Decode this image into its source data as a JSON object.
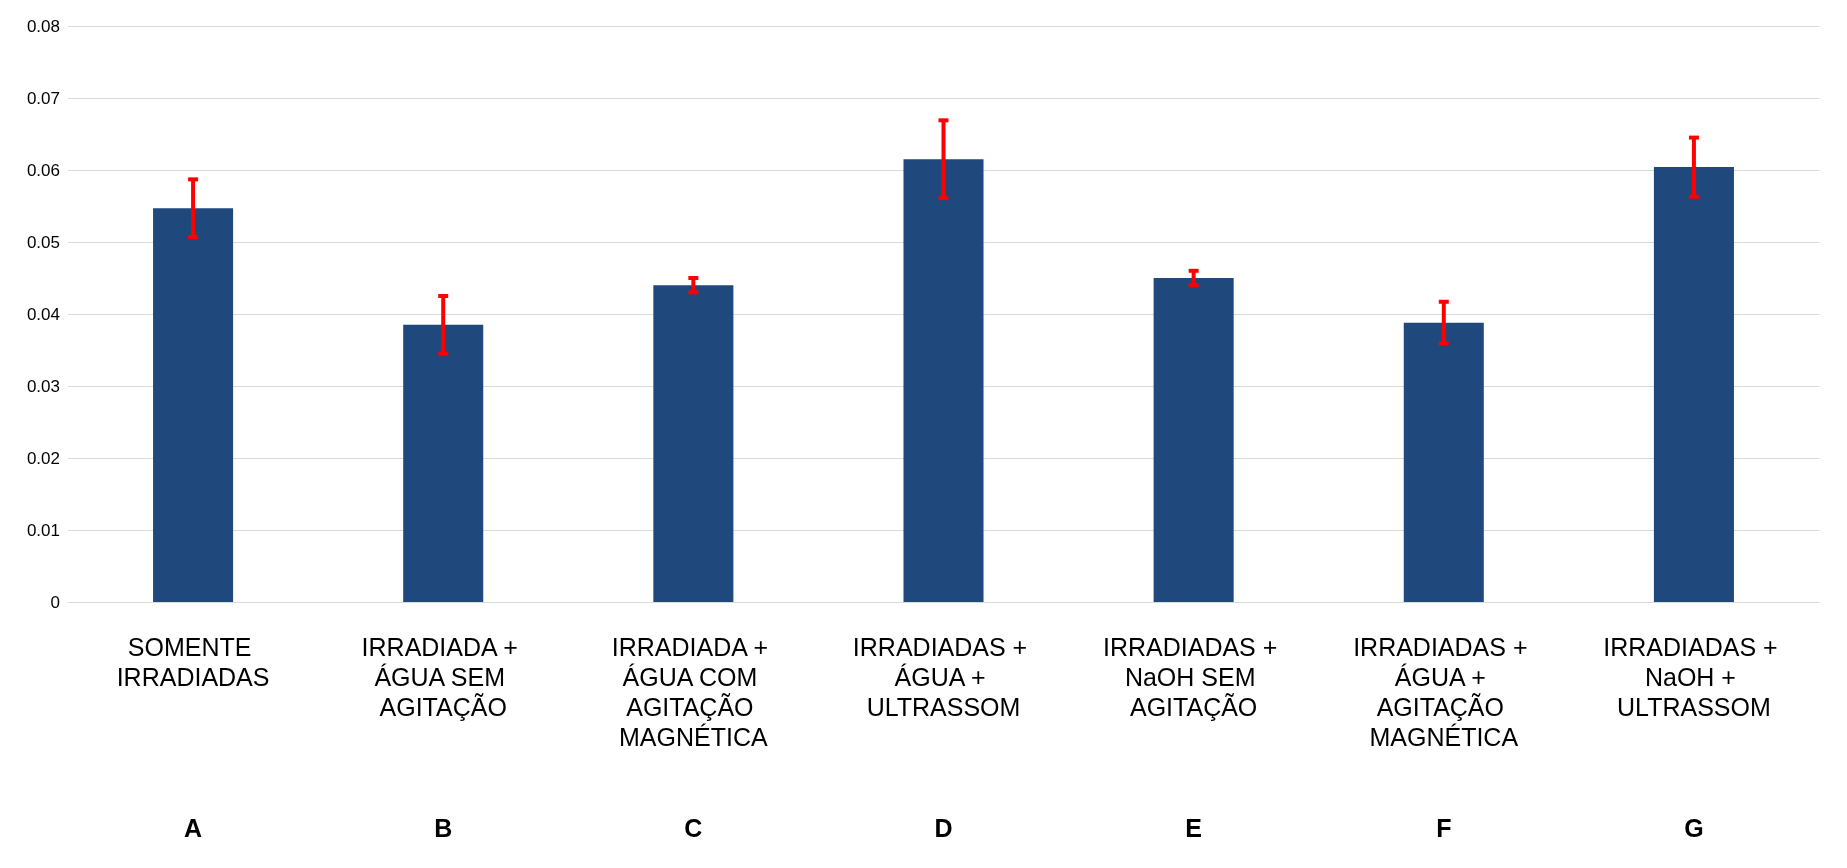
{
  "chart_data": {
    "type": "bar",
    "categories": [
      "SOMENTE IRRADIADAS",
      "IRRADIADA + ÁGUA SEM AGITAÇÃO",
      "IRRADIADA + ÁGUA COM AGITAÇÃO MAGNÉTICA",
      "IRRADIADAS + ÁGUA + ULTRASSOM",
      "IRRADIADAS + NaOH SEM AGITAÇÃO",
      "IRRADIADAS + ÁGUA + AGITAÇÃO MAGNÉTICA",
      "IRRADIADAS + NaOH + ULTRASSOM"
    ],
    "series": [
      {
        "color": "#1f497d",
        "values": [
          0.0547,
          0.0385,
          0.044,
          0.0615,
          0.045,
          0.0388,
          0.0604
        ],
        "errors": [
          0.004,
          0.004,
          0.001,
          0.0054,
          0.001,
          0.0029,
          0.0041
        ]
      }
    ],
    "annotations": [
      "A",
      "B",
      "C",
      "D",
      "E",
      "F",
      "G"
    ],
    "ylim": [
      0,
      0.08
    ],
    "yticks": [
      0,
      0.01,
      0.02,
      0.03,
      0.04,
      0.05,
      0.06,
      0.07,
      0.08
    ],
    "grid": "y"
  }
}
